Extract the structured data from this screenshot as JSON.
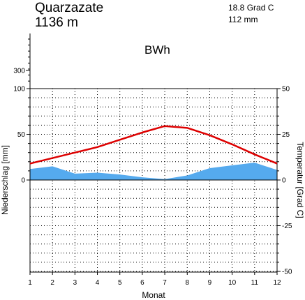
{
  "chart_data": {
    "type": "line",
    "station": "Quarzazate",
    "elevation": "1136 m",
    "mean_temperature": "18.8 Grad C",
    "annual_precipitation": "112 mm",
    "climate_class": "BWh",
    "xlabel": "Monat",
    "ylabel_left": "Niederschlag [mm]",
    "ylabel_right": "Temperatur [Grad C]",
    "x": [
      1,
      2,
      3,
      4,
      5,
      6,
      7,
      8,
      9,
      10,
      11,
      12
    ],
    "x_tick_labels": [
      "1",
      "2",
      "3",
      "4",
      "5",
      "6",
      "7",
      "8",
      "9",
      "10",
      "11",
      "12"
    ],
    "left_ticks": [
      "300",
      "100",
      "50",
      "0"
    ],
    "right_ticks": [
      "50",
      "25",
      "0",
      "-25",
      "-50"
    ],
    "precip_ylim": [
      0,
      100
    ],
    "temp_ylim": [
      -50,
      50
    ],
    "grid": true,
    "series": [
      {
        "kind": "area",
        "axis": "left",
        "color": "#55aaee",
        "values": [
          12,
          15,
          7,
          8,
          6,
          3,
          1,
          5,
          13,
          16,
          19,
          11
        ]
      },
      {
        "kind": "line",
        "axis": "right",
        "color": "#dd0000",
        "values": [
          9.0,
          12.0,
          15.0,
          18.0,
          22.0,
          26.0,
          29.5,
          28.5,
          24.5,
          19.5,
          14.0,
          9.0
        ]
      }
    ]
  }
}
